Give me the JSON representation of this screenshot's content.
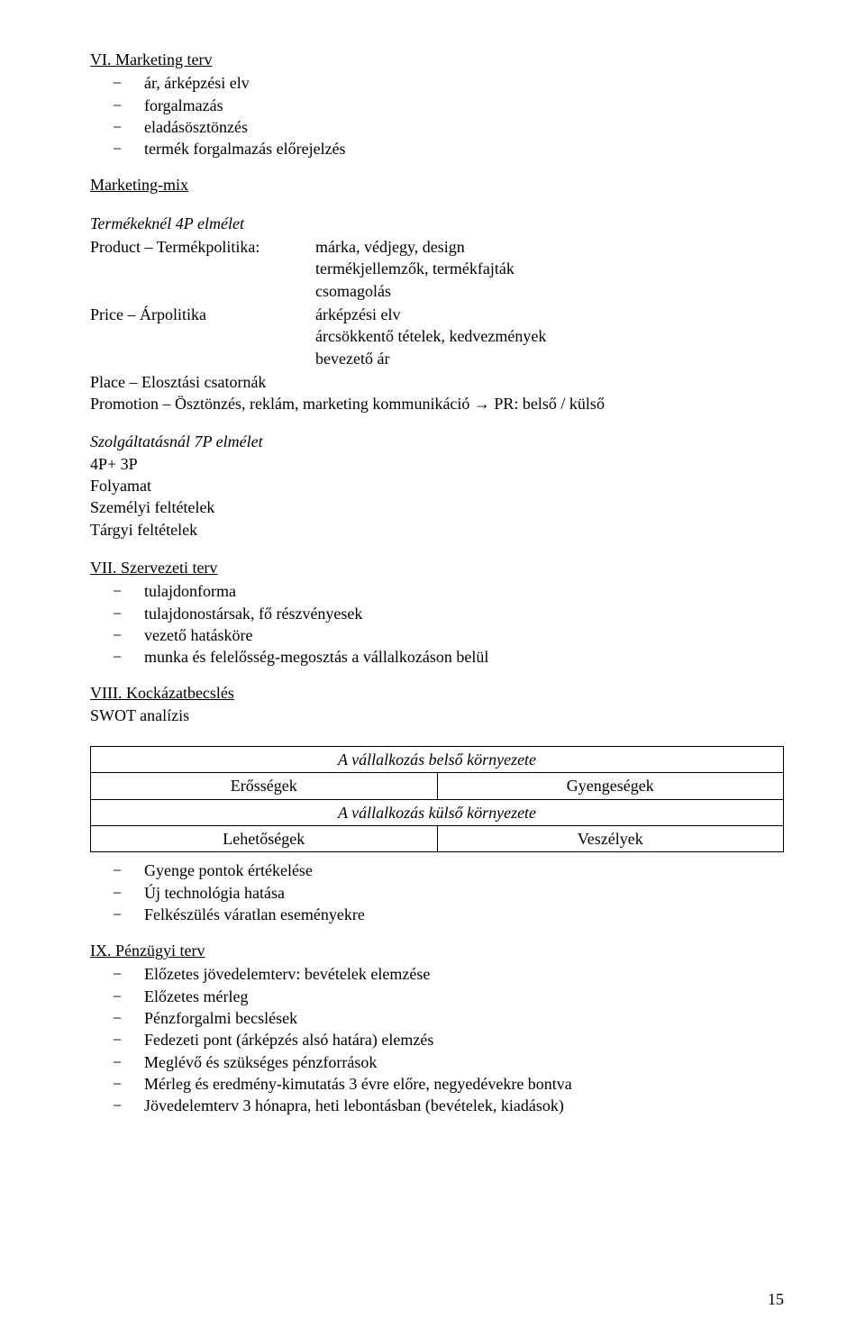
{
  "section6": {
    "title": "VI. Marketing terv",
    "items": [
      "ár, árképzési elv",
      "forgalmazás",
      "eladásösztönzés",
      "termék forgalmazás előrejelzés"
    ]
  },
  "mix": {
    "title": "Marketing-mix",
    "p4_title": "Termékeknél 4P elmélet",
    "product_label": "Product – Termékpolitika:",
    "product_lines": [
      "márka, védjegy, design",
      "termékjellemzők, termékfajták",
      "csomagolás"
    ],
    "price_label": "Price – Árpolitika",
    "price_lines": [
      "árképzési elv",
      "árcsökkentő tételek, kedvezmények",
      "bevezető ár"
    ],
    "place_line": "Place – Elosztási csatornák",
    "promotion_line": "Promotion – Ösztönzés, reklám, marketing kommunikáció → PR: belső / külső"
  },
  "p7": {
    "title": "Szolgáltatásnál 7P elmélet",
    "lines": [
      "4P+ 3P",
      "Folyamat",
      "Személyi feltételek",
      "Tárgyi feltételek"
    ]
  },
  "section7": {
    "title": "VII. Szervezeti terv",
    "items": [
      "tulajdonforma",
      "tulajdonostársak, fő részvényesek",
      "vezető hatásköre",
      "munka és felelősség-megosztás a vállalkozáson belül"
    ]
  },
  "section8": {
    "title": "VIII. Kockázatbecslés",
    "swot_label": " SWOT analízis",
    "swot": {
      "inner": "A vállalkozás belső környezete",
      "strengths": "Erősségek",
      "weaknesses": "Gyengeségek",
      "outer": "A vállalkozás külső környezete",
      "opportunities": "Lehetőségek",
      "threats": "Veszélyek"
    },
    "items": [
      "Gyenge pontok értékelése",
      "Új technológia hatása",
      "Felkészülés váratlan eseményekre"
    ]
  },
  "section9": {
    "title": "IX. Pénzügyi terv",
    "items": [
      "Előzetes jövedelemterv: bevételek elemzése",
      "Előzetes mérleg",
      "Pénzforgalmi becslések",
      "Fedezeti pont (árképzés alsó határa) elemzés",
      "Meglévő és szükséges pénzforrások",
      "Mérleg és eredmény-kimutatás 3 évre előre, negyedévekre bontva",
      "Jövedelemterv 3 hónapra, heti lebontásban (bevételek, kiadások)"
    ]
  },
  "page_number": "15"
}
